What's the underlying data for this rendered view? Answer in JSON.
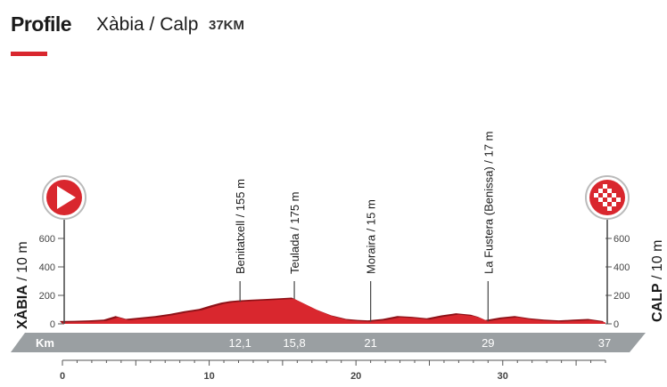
{
  "header": {
    "label": "Profile",
    "route": "Xàbia / Calp",
    "distance": "37KM"
  },
  "colors": {
    "profile_fill": "#d9272e",
    "profile_shadow": "#8e1218",
    "km_band": "#9a9fa2",
    "accent": "#d9272e",
    "text": "#1a1a1a"
  },
  "start": {
    "name": "XÀBIA",
    "elevation": "10 m",
    "icon": "start-play-icon"
  },
  "finish": {
    "name": "CALP",
    "elevation": "10 m",
    "icon": "finish-checkered-icon"
  },
  "km_band_label": "Km",
  "chart_data": {
    "type": "area",
    "xlabel": "",
    "ylabel": "",
    "xlim": [
      0,
      37
    ],
    "ylim": [
      0,
      700
    ],
    "y_ticks": [
      0,
      200,
      400,
      600
    ],
    "x_ticks": [
      0,
      10,
      20,
      30
    ],
    "x": [
      0,
      1,
      2,
      3,
      3.8,
      4.5,
      5.5,
      6.5,
      7.5,
      8.5,
      9.5,
      10.3,
      11,
      11.6,
      12.1,
      13,
      14,
      15,
      15.8,
      16.5,
      17.5,
      18.5,
      19.5,
      20.3,
      21,
      22,
      23,
      24,
      25,
      26,
      27,
      28,
      28.5,
      29,
      30,
      31,
      32,
      33,
      34,
      35,
      36,
      37
    ],
    "y": [
      10,
      12,
      15,
      20,
      45,
      25,
      35,
      45,
      60,
      80,
      95,
      120,
      140,
      150,
      155,
      160,
      165,
      170,
      175,
      140,
      90,
      50,
      25,
      18,
      15,
      25,
      45,
      40,
      30,
      50,
      65,
      55,
      40,
      17,
      35,
      45,
      30,
      20,
      15,
      20,
      25,
      10
    ],
    "waypoints": [
      {
        "name": "Benitatxell",
        "elevation": "155 m",
        "km": 12.1,
        "km_label": "12,1"
      },
      {
        "name": "Teulada",
        "elevation": "175 m",
        "km": 15.8,
        "km_label": "15,8"
      },
      {
        "name": "Moraira",
        "elevation": "15 m",
        "km": 21,
        "km_label": "21"
      },
      {
        "name": "La Fustera (Benissa)",
        "elevation": "17 m",
        "km": 29,
        "km_label": "29"
      }
    ],
    "finish_km_label": "37"
  }
}
